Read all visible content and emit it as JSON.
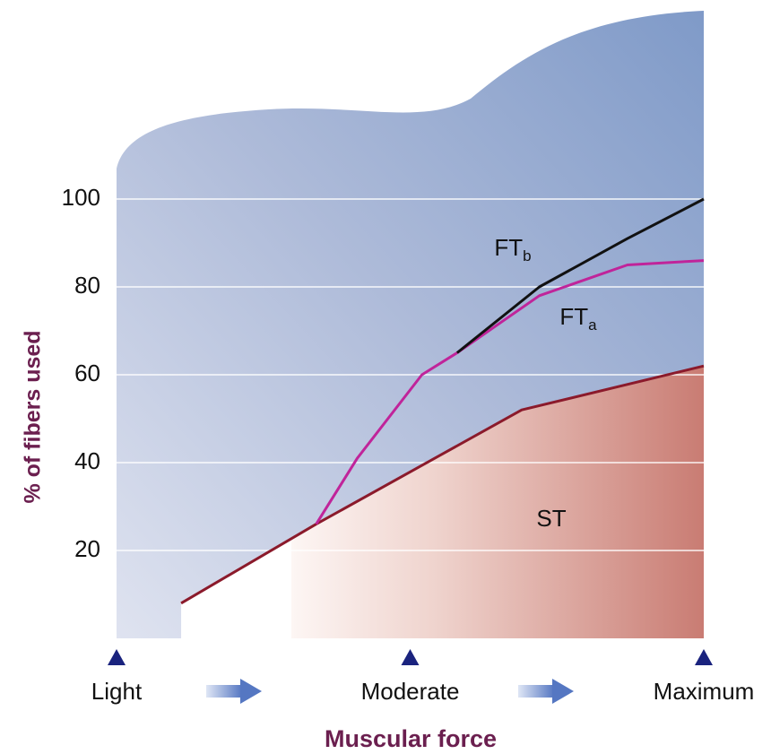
{
  "chart_data": {
    "type": "line",
    "y_label": "% of fibers used",
    "x_label": "Muscular force",
    "xlim": [
      0,
      100
    ],
    "xticks": [
      {
        "value": 0,
        "label": "Light"
      },
      {
        "value": 50,
        "label": "Moderate"
      },
      {
        "value": 100,
        "label": "Maximum"
      }
    ],
    "ylim": [
      0,
      100
    ],
    "yticks": [
      20,
      40,
      60,
      80,
      100
    ],
    "grid": true,
    "series": [
      {
        "name": "ST",
        "color": "#8b1a2b",
        "x": [
          11,
          34,
          69,
          100
        ],
        "values": [
          8,
          26,
          52,
          62
        ]
      },
      {
        "name": "FT",
        "subscript": "a",
        "color": "#c0249a",
        "x": [
          34,
          41,
          52,
          58,
          72,
          87,
          100
        ],
        "values": [
          26,
          41,
          60,
          65,
          78,
          85,
          86
        ]
      },
      {
        "name": "FT",
        "subscript": "b",
        "color": "#111111",
        "x": [
          58,
          72,
          87,
          100
        ],
        "values": [
          65,
          80,
          91,
          100
        ]
      }
    ]
  }
}
